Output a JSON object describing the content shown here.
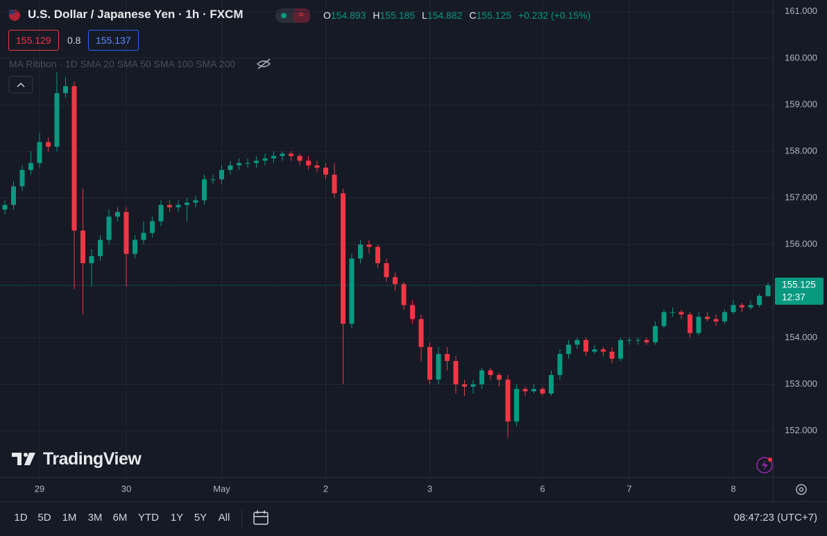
{
  "header": {
    "title": "U.S. Dollar / Japanese Yen · 1h · FXCM",
    "ohlc_labels": [
      "O",
      "H",
      "L",
      "C"
    ],
    "change": "+0.232 (+0.15%)",
    "quote": {
      "sell": "155.129",
      "spread": "0.8",
      "buy": "155.137"
    },
    "indicator": {
      "name": "MA Ribbon",
      "params": "1D SMA 20 SMA 50 SMA 100 SMA 200"
    }
  },
  "logo": "TradingView",
  "toolbar": {
    "ranges": [
      "1D",
      "5D",
      "1M",
      "3M",
      "6M",
      "YTD",
      "1Y",
      "5Y",
      "All"
    ],
    "clock": "08:47:23 (UTC+7)"
  },
  "chart_data": {
    "type": "candlestick",
    "up_color": "#089981",
    "down_color": "#f23645",
    "grid": true,
    "countdown": "12:37",
    "categories": [
      null,
      null,
      null,
      null,
      "29",
      null,
      null,
      null,
      null,
      null,
      null,
      null,
      null,
      null,
      "30",
      null,
      null,
      null,
      null,
      null,
      null,
      null,
      null,
      null,
      null,
      "May",
      null,
      null,
      null,
      null,
      null,
      null,
      null,
      null,
      null,
      null,
      null,
      "2",
      null,
      null,
      null,
      null,
      null,
      null,
      null,
      null,
      null,
      null,
      null,
      "3",
      null,
      null,
      null,
      null,
      null,
      null,
      null,
      null,
      null,
      null,
      null,
      null,
      "6",
      null,
      null,
      null,
      null,
      null,
      null,
      null,
      null,
      null,
      "7",
      null,
      null,
      null,
      null,
      null,
      null,
      null,
      null,
      null,
      null,
      null,
      "8",
      null,
      null,
      null,
      null
    ],
    "open": [
      156.75,
      156.85,
      157.25,
      157.6,
      157.75,
      158.2,
      158.1,
      159.25,
      159.4,
      156.3,
      155.6,
      155.75,
      156.1,
      156.6,
      156.7,
      155.8,
      156.1,
      156.25,
      156.5,
      156.85,
      156.8,
      156.85,
      156.9,
      156.95,
      157.4,
      157.4,
      157.6,
      157.7,
      157.75,
      157.75,
      157.8,
      157.85,
      157.9,
      157.95,
      157.9,
      157.8,
      157.7,
      157.65,
      157.5,
      157.1,
      154.3,
      155.7,
      156.0,
      155.95,
      155.6,
      155.3,
      155.15,
      154.7,
      154.4,
      153.8,
      153.1,
      153.65,
      153.5,
      153.0,
      152.95,
      153.0,
      153.3,
      153.2,
      153.1,
      152.2,
      152.9,
      152.85,
      152.9,
      152.8,
      153.2,
      153.65,
      153.85,
      153.95,
      153.7,
      153.75,
      153.7,
      153.55,
      153.95,
      153.95,
      153.95,
      153.9,
      154.25,
      154.55,
      154.55,
      154.5,
      154.1,
      154.45,
      154.4,
      154.35,
      154.55,
      154.7,
      154.65,
      154.7,
      154.893
    ],
    "high": [
      156.95,
      157.35,
      157.7,
      158.0,
      158.4,
      158.3,
      159.7,
      159.6,
      159.5,
      157.2,
      155.9,
      156.2,
      156.75,
      156.8,
      156.8,
      156.2,
      156.5,
      156.6,
      156.95,
      156.95,
      156.95,
      157.0,
      157.05,
      157.5,
      157.5,
      157.7,
      157.8,
      157.85,
      157.85,
      157.9,
      157.95,
      158.0,
      158.0,
      158.0,
      157.95,
      157.9,
      157.8,
      157.75,
      157.75,
      157.2,
      155.8,
      156.1,
      156.1,
      156.0,
      155.7,
      155.4,
      155.2,
      154.8,
      154.5,
      153.9,
      153.8,
      153.8,
      153.6,
      153.1,
      153.1,
      153.35,
      153.35,
      153.25,
      153.2,
      153.0,
      152.95,
      153.0,
      152.95,
      153.3,
      153.75,
      153.95,
      154.0,
      154.0,
      153.85,
      153.8,
      153.8,
      154.0,
      154.0,
      154.0,
      154.0,
      154.35,
      154.6,
      154.65,
      154.6,
      154.55,
      154.55,
      154.55,
      154.5,
      154.6,
      154.8,
      154.75,
      154.8,
      154.95,
      155.185
    ],
    "low": [
      156.65,
      156.75,
      157.15,
      157.5,
      157.65,
      158.0,
      158.0,
      159.15,
      155.05,
      154.5,
      155.1,
      155.65,
      156.0,
      156.5,
      155.1,
      155.7,
      156.0,
      156.15,
      156.4,
      156.7,
      156.7,
      156.5,
      156.8,
      156.85,
      157.3,
      157.3,
      157.5,
      157.6,
      157.65,
      157.65,
      157.7,
      157.75,
      157.8,
      157.8,
      157.7,
      157.6,
      157.55,
      157.4,
      157.0,
      153.0,
      154.2,
      155.6,
      155.8,
      155.5,
      155.2,
      155.0,
      154.6,
      154.3,
      153.5,
      153.0,
      153.0,
      153.3,
      152.8,
      152.75,
      152.8,
      152.9,
      153.1,
      152.95,
      151.85,
      152.1,
      152.75,
      152.8,
      152.75,
      152.75,
      153.1,
      153.55,
      153.75,
      153.6,
      153.65,
      153.6,
      153.45,
      153.5,
      153.85,
      153.85,
      153.85,
      153.85,
      154.2,
      154.45,
      154.4,
      154.0,
      154.05,
      154.35,
      154.25,
      154.3,
      154.5,
      154.55,
      154.6,
      154.65,
      154.882
    ],
    "close": [
      156.85,
      157.25,
      157.6,
      157.75,
      158.2,
      158.1,
      159.25,
      159.4,
      156.3,
      155.6,
      155.75,
      156.1,
      156.6,
      156.7,
      155.8,
      156.1,
      156.25,
      156.5,
      156.85,
      156.8,
      156.85,
      156.9,
      156.95,
      157.4,
      157.4,
      157.6,
      157.7,
      157.75,
      157.75,
      157.8,
      157.85,
      157.9,
      157.95,
      157.9,
      157.8,
      157.7,
      157.65,
      157.5,
      157.1,
      154.3,
      155.7,
      156.0,
      155.95,
      155.6,
      155.3,
      155.15,
      154.7,
      154.4,
      153.8,
      153.1,
      153.65,
      153.5,
      153.0,
      152.95,
      153.0,
      153.3,
      153.2,
      153.1,
      152.2,
      152.9,
      152.85,
      152.9,
      152.8,
      153.2,
      153.65,
      153.85,
      153.95,
      153.7,
      153.75,
      153.7,
      153.55,
      153.95,
      153.95,
      153.95,
      153.9,
      154.25,
      154.55,
      154.55,
      154.5,
      154.1,
      154.45,
      154.4,
      154.35,
      154.55,
      154.7,
      154.65,
      154.7,
      154.9,
      155.125
    ],
    "ylim": [
      151.01,
      161.25
    ],
    "yticks": [
      {
        "value": 152,
        "label": "152.000"
      },
      {
        "value": 153,
        "label": "153.000"
      },
      {
        "value": 154,
        "label": "154.000"
      },
      {
        "value": 156,
        "label": "156.000"
      },
      {
        "value": 157,
        "label": "157.000"
      },
      {
        "value": 158,
        "label": "158.000"
      },
      {
        "value": 159,
        "label": "159.000"
      },
      {
        "value": 160,
        "label": "160.000"
      },
      {
        "value": 161,
        "label": "161.000"
      }
    ]
  }
}
